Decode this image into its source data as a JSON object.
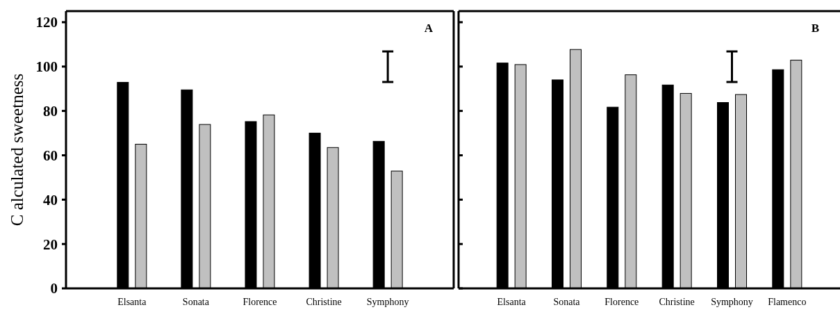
{
  "chart_data": [
    {
      "type": "bar",
      "ylabel": "C alculated sweetness",
      "annotations": [
        "A"
      ],
      "categories": [
        "Elsanta",
        "Sonata",
        "Florence",
        "Christine",
        "Symphony"
      ],
      "ylim": [
        0,
        125
      ],
      "yticks": [
        0,
        20,
        40,
        60,
        80,
        100,
        120
      ],
      "series": [
        {
          "color": "#000000",
          "values": [
            92.9,
            89.5,
            75.2,
            70.0,
            66.3
          ]
        },
        {
          "color": "#c0c0c0",
          "values": [
            65.0,
            73.9,
            78.2,
            63.5,
            52.9
          ]
        }
      ]
    },
    {
      "type": "bar",
      "annotations": [
        "B"
      ],
      "categories": [
        "Elsanta",
        "Sonata",
        "Florence",
        "Christine",
        "Symphony",
        "Flamenco"
      ],
      "ylim": [
        0,
        125
      ],
      "yticks": [
        0,
        20,
        40,
        60,
        80,
        100,
        120
      ],
      "tick_labels": "x",
      "series": [
        {
          "color": "#000000",
          "values": [
            101.6,
            94.0,
            81.7,
            91.7,
            83.8,
            98.6
          ]
        },
        {
          "color": "#c0c0c0",
          "values": [
            100.9,
            107.7,
            96.3,
            87.9,
            87.4,
            102.9
          ]
        }
      ]
    }
  ]
}
